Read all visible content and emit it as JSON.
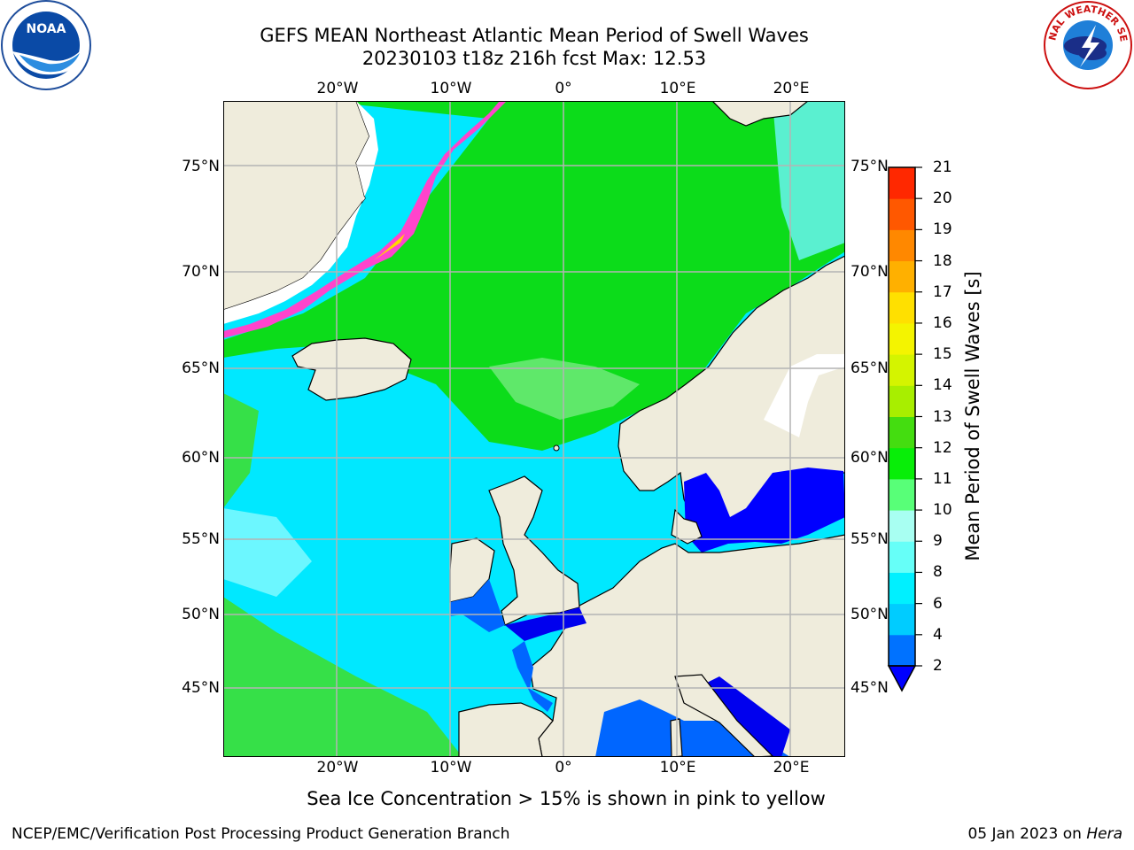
{
  "title": {
    "line1": "GEFS MEAN Northeast Atlantic Mean Period of Swell Waves",
    "line2": "20230103 t18z 216h fcst   Max: 12.53"
  },
  "map": {
    "lon_labels": [
      "20°W",
      "10°W",
      "0°",
      "10°E",
      "20°E"
    ],
    "lat_labels": [
      "75°N",
      "70°N",
      "65°N",
      "60°N",
      "55°N",
      "50°N",
      "45°N"
    ],
    "land_color": "#efecdc",
    "ocean_swell_color": "#00e8ff",
    "ice_note": "Sea Ice Concentration > 15% is shown in pink to yellow"
  },
  "colorbar": {
    "label": "Mean Period of Swell Waves [s]",
    "ticks": [
      "2",
      "4",
      "6",
      "8",
      "9",
      "10",
      "11",
      "12",
      "13",
      "14",
      "15",
      "16",
      "17",
      "18",
      "19",
      "20",
      "21"
    ],
    "colors": [
      "#0072ff",
      "#00ccff",
      "#00f0ff",
      "#66fff8",
      "#a8fff2",
      "#58ff78",
      "#08ee08",
      "#44dd10",
      "#a8ee00",
      "#d4f400",
      "#f4f400",
      "#ffe000",
      "#ffb000",
      "#ff8800",
      "#ff5800",
      "#ff2800"
    ],
    "under_color": "#0000ff",
    "top_color": "#ff0000"
  },
  "logos": {
    "noaa": "NOAA",
    "nws": "NATIONAL WEATHER SERVICE"
  },
  "footer": {
    "left": "NCEP/EMC/Verification Post Processing Product Generation Branch",
    "date": "05 Jan 2023 on",
    "host": "Hera"
  }
}
